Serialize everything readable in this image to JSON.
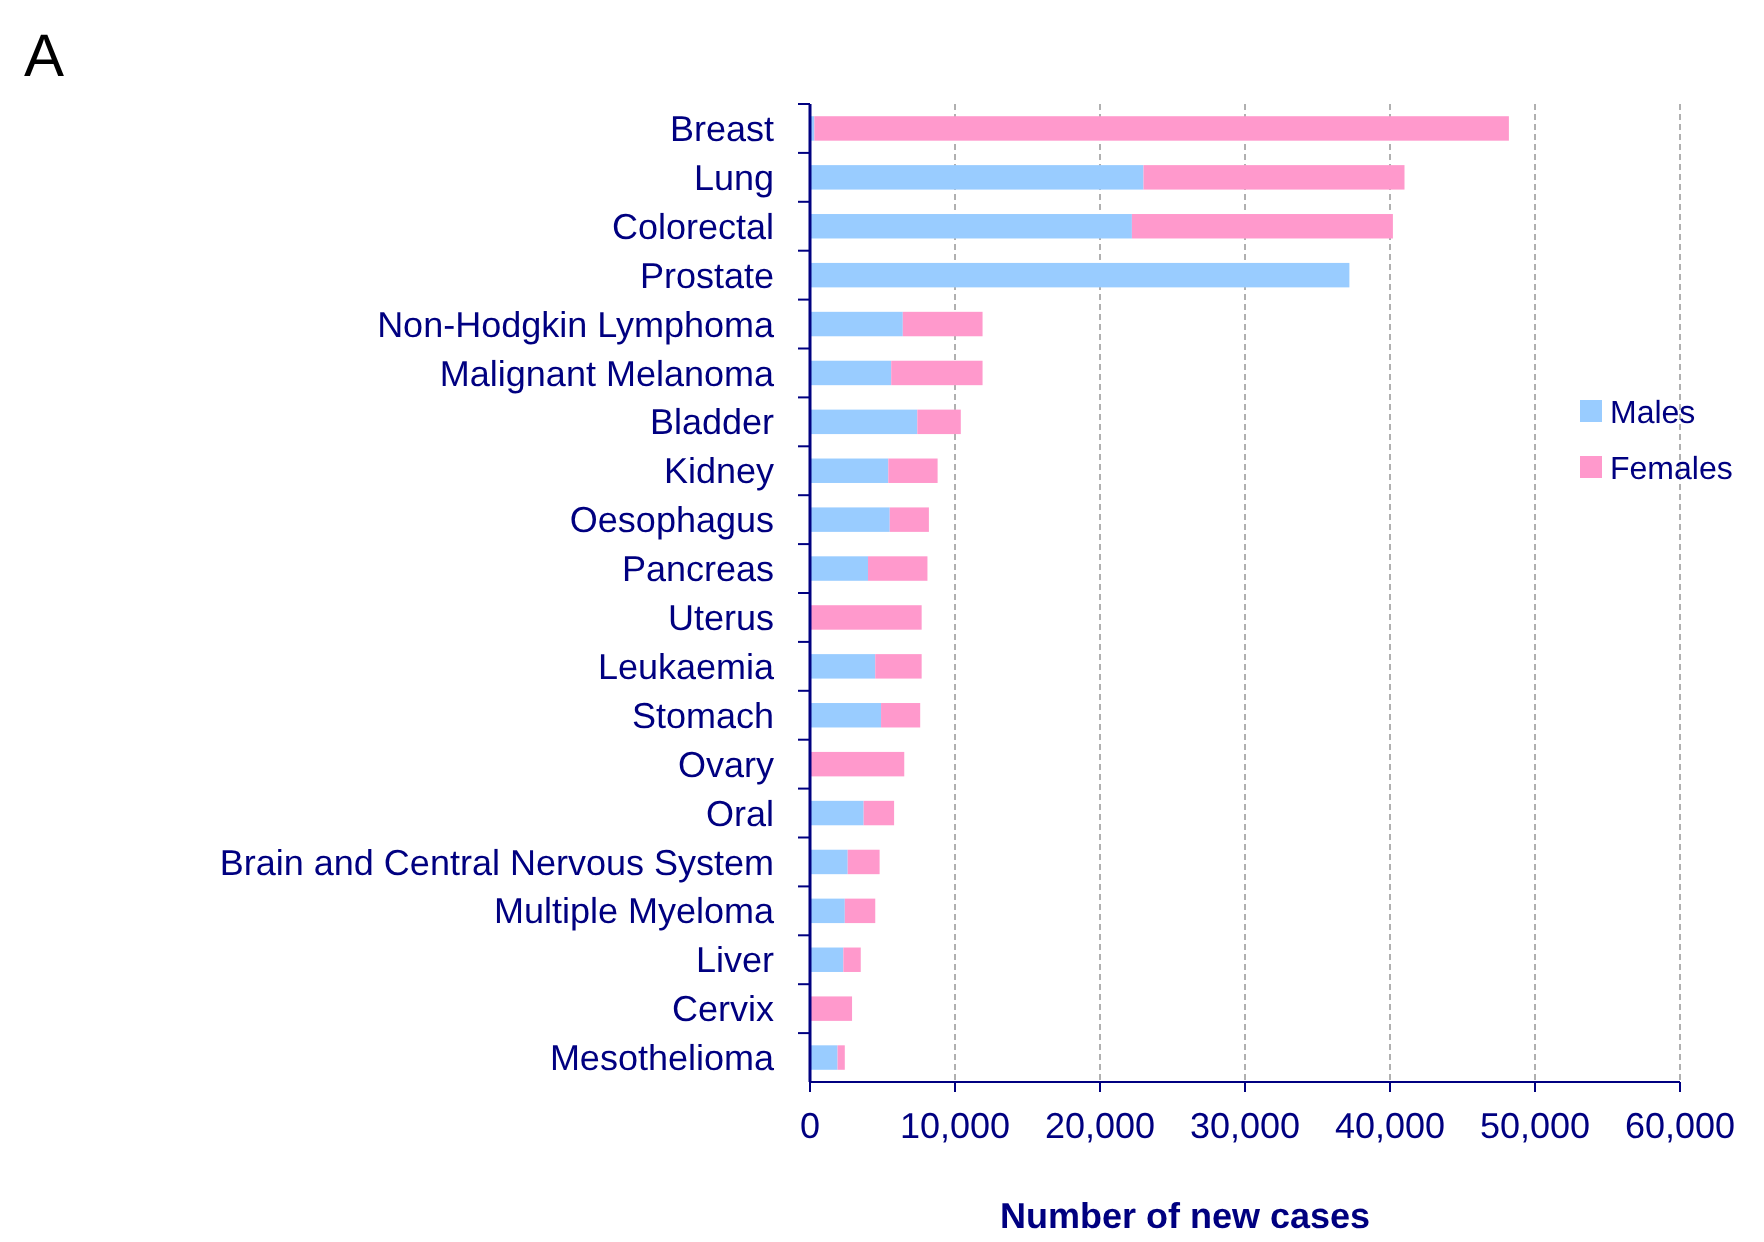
{
  "chart_data": {
    "type": "bar",
    "title": "A",
    "orientation": "horizontal",
    "stacked": true,
    "categories": [
      "Breast",
      "Lung",
      "Colorectal",
      "Prostate",
      "Non-Hodgkin Lymphoma",
      "Malignant Melanoma",
      "Bladder",
      "Kidney",
      "Oesophagus",
      "Pancreas",
      "Uterus",
      "Leukaemia",
      "Stomach",
      "Ovary",
      "Oral",
      "Brain and Central Nervous System",
      "Multiple Myeloma",
      "Liver",
      "Cervix",
      "Mesothelioma"
    ],
    "series": [
      {
        "name": "Males",
        "color": "#99ccff",
        "values": [
          300,
          23000,
          22200,
          37200,
          6400,
          5600,
          7400,
          5400,
          5500,
          4000,
          0,
          4500,
          4900,
          0,
          3700,
          2600,
          2400,
          2300,
          0,
          1900
        ]
      },
      {
        "name": "Females",
        "color": "#ff99cc",
        "values": [
          47900,
          18000,
          18000,
          0,
          5500,
          6300,
          3000,
          3400,
          2700,
          4100,
          7700,
          3200,
          2700,
          6500,
          2100,
          2200,
          2100,
          1200,
          2900,
          500
        ]
      }
    ],
    "xlabel": "Number of new cases",
    "xlim": [
      0,
      60000
    ],
    "xticks": [
      {
        "value": 0,
        "label": "0"
      },
      {
        "value": 10000,
        "label": "10,000"
      },
      {
        "value": 20000,
        "label": "20,000"
      },
      {
        "value": 30000,
        "label": "30,000"
      },
      {
        "value": 40000,
        "label": "40,000"
      },
      {
        "value": 50000,
        "label": "50,000"
      },
      {
        "value": 60000,
        "label": "60,000"
      }
    ],
    "grid": "x",
    "legend": "right"
  }
}
